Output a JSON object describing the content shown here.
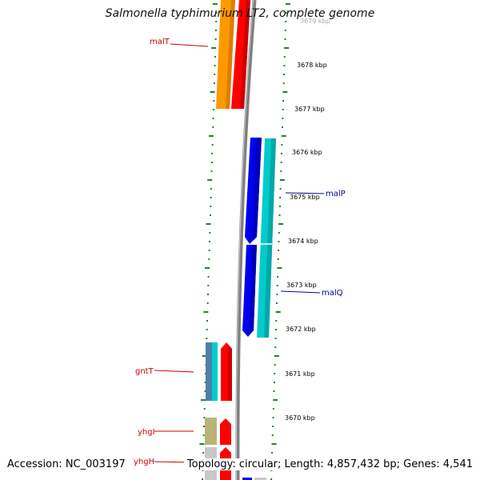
{
  "title": "Salmonella typhimurium LT2, complete genome",
  "footer": {
    "accession": "Accession: NC_003197",
    "topology": "Topology: circular; Length: 4,857,432 bp; Genes: 4,541"
  },
  "ruler": {
    "unit": "kbp",
    "ticks": [
      "3679 kbp",
      "3678 kbp",
      "3677 kbp",
      "3676 kbp",
      "3675 kbp",
      "3674 kbp",
      "3673 kbp",
      "3672 kbp",
      "3671 kbp",
      "3670 kbp"
    ]
  },
  "gene_labels": [
    {
      "name": "malT",
      "color": "#cc0000"
    },
    {
      "name": "malP",
      "color": "#000099"
    },
    {
      "name": "malQ",
      "color": "#000099"
    },
    {
      "name": "gntT",
      "color": "#cc0000"
    },
    {
      "name": "yhgI",
      "color": "#cc0000"
    },
    {
      "name": "yhgH",
      "color": "#cc0000"
    }
  ],
  "colors": {
    "backbone": "#808080",
    "dots": "#1a8a1a",
    "orange": "#ff9900",
    "red": "#ff0000",
    "blue": "#0000ee",
    "cyan": "#00cccc",
    "steel": "#4f7fa8",
    "olive": "#b8b478",
    "grey": "#c8c8c8"
  }
}
